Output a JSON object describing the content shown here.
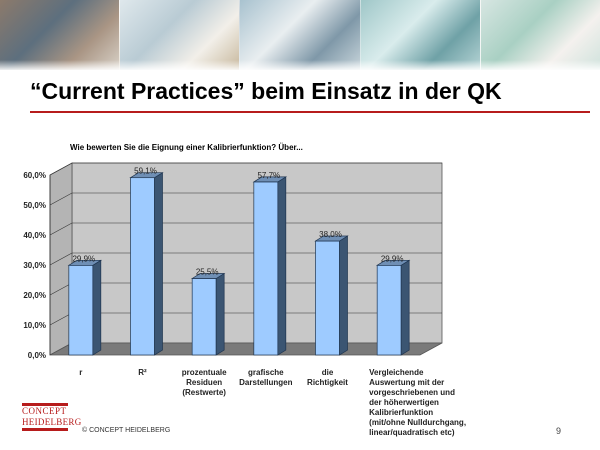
{
  "slide": {
    "title": "“Current Practices” beim Einsatz in der QK",
    "question": "Wie bewerten Sie die Eignung einer Kalibrierfunktion? Über...",
    "footer": "© CONCEPT HEIDELBERG",
    "page_number": "9",
    "logo": {
      "line1": "CONCEPT",
      "line2": "HEIDELBERG"
    }
  },
  "colors": {
    "bar_front": "#9ecbff",
    "bar_side": "#3b5572",
    "bar_top": "#6f8fb5",
    "wall": "#c8c8c8",
    "floor": "#7a7a7a",
    "accent": "#b71c1c"
  },
  "chart_data": {
    "type": "bar",
    "title": "Wie bewerten Sie die Eignung einer Kalibrierfunktion? Über...",
    "categories": [
      "r",
      "R²",
      "prozentuale\nResiduen\n(Restwerte)",
      "grafische\nDarstellungen",
      "die\nRichtigkeit",
      "Vergleichende\nAuswertung mit der\nvorgeschriebenen und\nder höherwertigen\nKalibrierfunktion\n(mit/ohne Nulldurchgang,\nlinear/quadratisch etc)"
    ],
    "values": [
      29.9,
      59.1,
      25.5,
      57.7,
      38.0,
      29.9
    ],
    "data_labels": [
      "29,9%",
      "59,1%",
      "25,5%",
      "57,7%",
      "38,0%",
      "29,9%"
    ],
    "y_ticks": [
      "0,0%",
      "10,0%",
      "20,0%",
      "30,0%",
      "40,0%",
      "50,0%",
      "60,0%"
    ],
    "ylim": [
      0,
      60
    ],
    "grid": true,
    "three_d": true
  }
}
